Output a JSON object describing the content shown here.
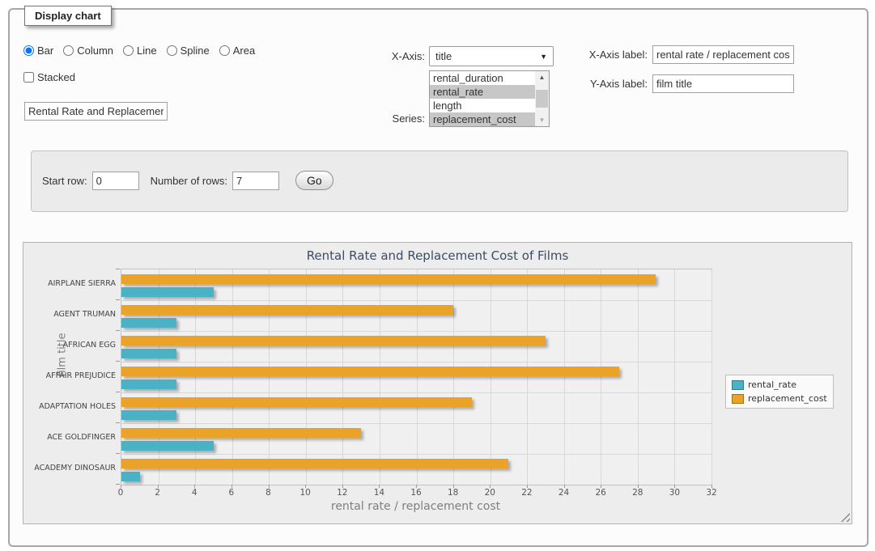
{
  "window": {
    "legend": "Display chart"
  },
  "controls": {
    "chart_types": [
      {
        "label": "Bar",
        "selected": true
      },
      {
        "label": "Column",
        "selected": false
      },
      {
        "label": "Line",
        "selected": false
      },
      {
        "label": "Spline",
        "selected": false
      },
      {
        "label": "Area",
        "selected": false
      }
    ],
    "stacked": {
      "label": "Stacked",
      "checked": false
    },
    "chart_title_input": {
      "value": "Rental Rate and Replacement Cost of Films"
    },
    "x_axis": {
      "label": "X-Axis:",
      "selected_value": "title",
      "arrow_icon": "▼"
    },
    "series": {
      "label": "Series:",
      "options": [
        {
          "label": "rental_duration",
          "selected": false
        },
        {
          "label": "rental_rate",
          "selected": true
        },
        {
          "label": "length",
          "selected": false
        },
        {
          "label": "replacement_cost",
          "selected": true
        }
      ],
      "scrollbar": {
        "up_icon": "▲",
        "down_icon": "▼"
      }
    },
    "x_axis_label_field": {
      "label": "X-Axis label:",
      "value": "rental rate / replacement cost"
    },
    "y_axis_label_field": {
      "label": "Y-Axis label:",
      "value": "film title"
    }
  },
  "row_controls": {
    "start_row_label": "Start row:",
    "start_row_value": "0",
    "num_rows_label": "Number of rows:",
    "num_rows_value": "7",
    "go_label": "Go"
  },
  "chart_data": {
    "type": "bar",
    "orientation": "horizontal",
    "title": "Rental Rate and Replacement Cost of Films",
    "xlabel": "rental rate / replacement cost",
    "ylabel": "film title",
    "categories": [
      "AIRPLANE SIERRA",
      "AGENT TRUMAN",
      "AFRICAN EGG",
      "AFFAIR PREJUDICE",
      "ADAPTATION HOLES",
      "ACE GOLDFINGER",
      "ACADEMY DINOSAUR"
    ],
    "series": [
      {
        "name": "rental_rate",
        "color": "#4bb2c5",
        "values": [
          4.99,
          2.99,
          2.99,
          2.99,
          2.99,
          4.99,
          0.99
        ]
      },
      {
        "name": "replacement_cost",
        "color": "#eaa228",
        "values": [
          28.99,
          17.99,
          22.99,
          26.99,
          18.99,
          12.99,
          20.99
        ]
      }
    ],
    "bar_draw_order": [
      "replacement_cost",
      "rental_rate"
    ],
    "xlim": [
      0,
      32
    ],
    "xticks": [
      0,
      2,
      4,
      6,
      8,
      10,
      12,
      14,
      16,
      18,
      20,
      22,
      24,
      26,
      28,
      30,
      32
    ],
    "grid": true,
    "legend": {
      "position": "right",
      "entries": [
        "rental_rate",
        "replacement_cost"
      ]
    }
  }
}
